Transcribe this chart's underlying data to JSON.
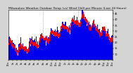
{
  "title": "Milwaukee Weather Outdoor Temp (vs) Wind Chill per Minute (Last 24 Hours)",
  "bg_color": "#d4d4d4",
  "plot_bg_color": "#ffffff",
  "bar_color": "#0000ee",
  "line_color": "#ff0000",
  "grid_color": "#888888",
  "ylim": [
    5,
    48
  ],
  "ytick_values": [
    10,
    15,
    20,
    25,
    30,
    35,
    40,
    45
  ],
  "ytick_labels": [
    "10",
    "15",
    "20",
    "25",
    "30",
    "35",
    "40",
    "45"
  ],
  "title_color": "#000000",
  "title_fontsize": 3.2,
  "tick_fontsize": 2.5,
  "n_points": 1440,
  "n_vgrid": 2,
  "baseline": 5
}
